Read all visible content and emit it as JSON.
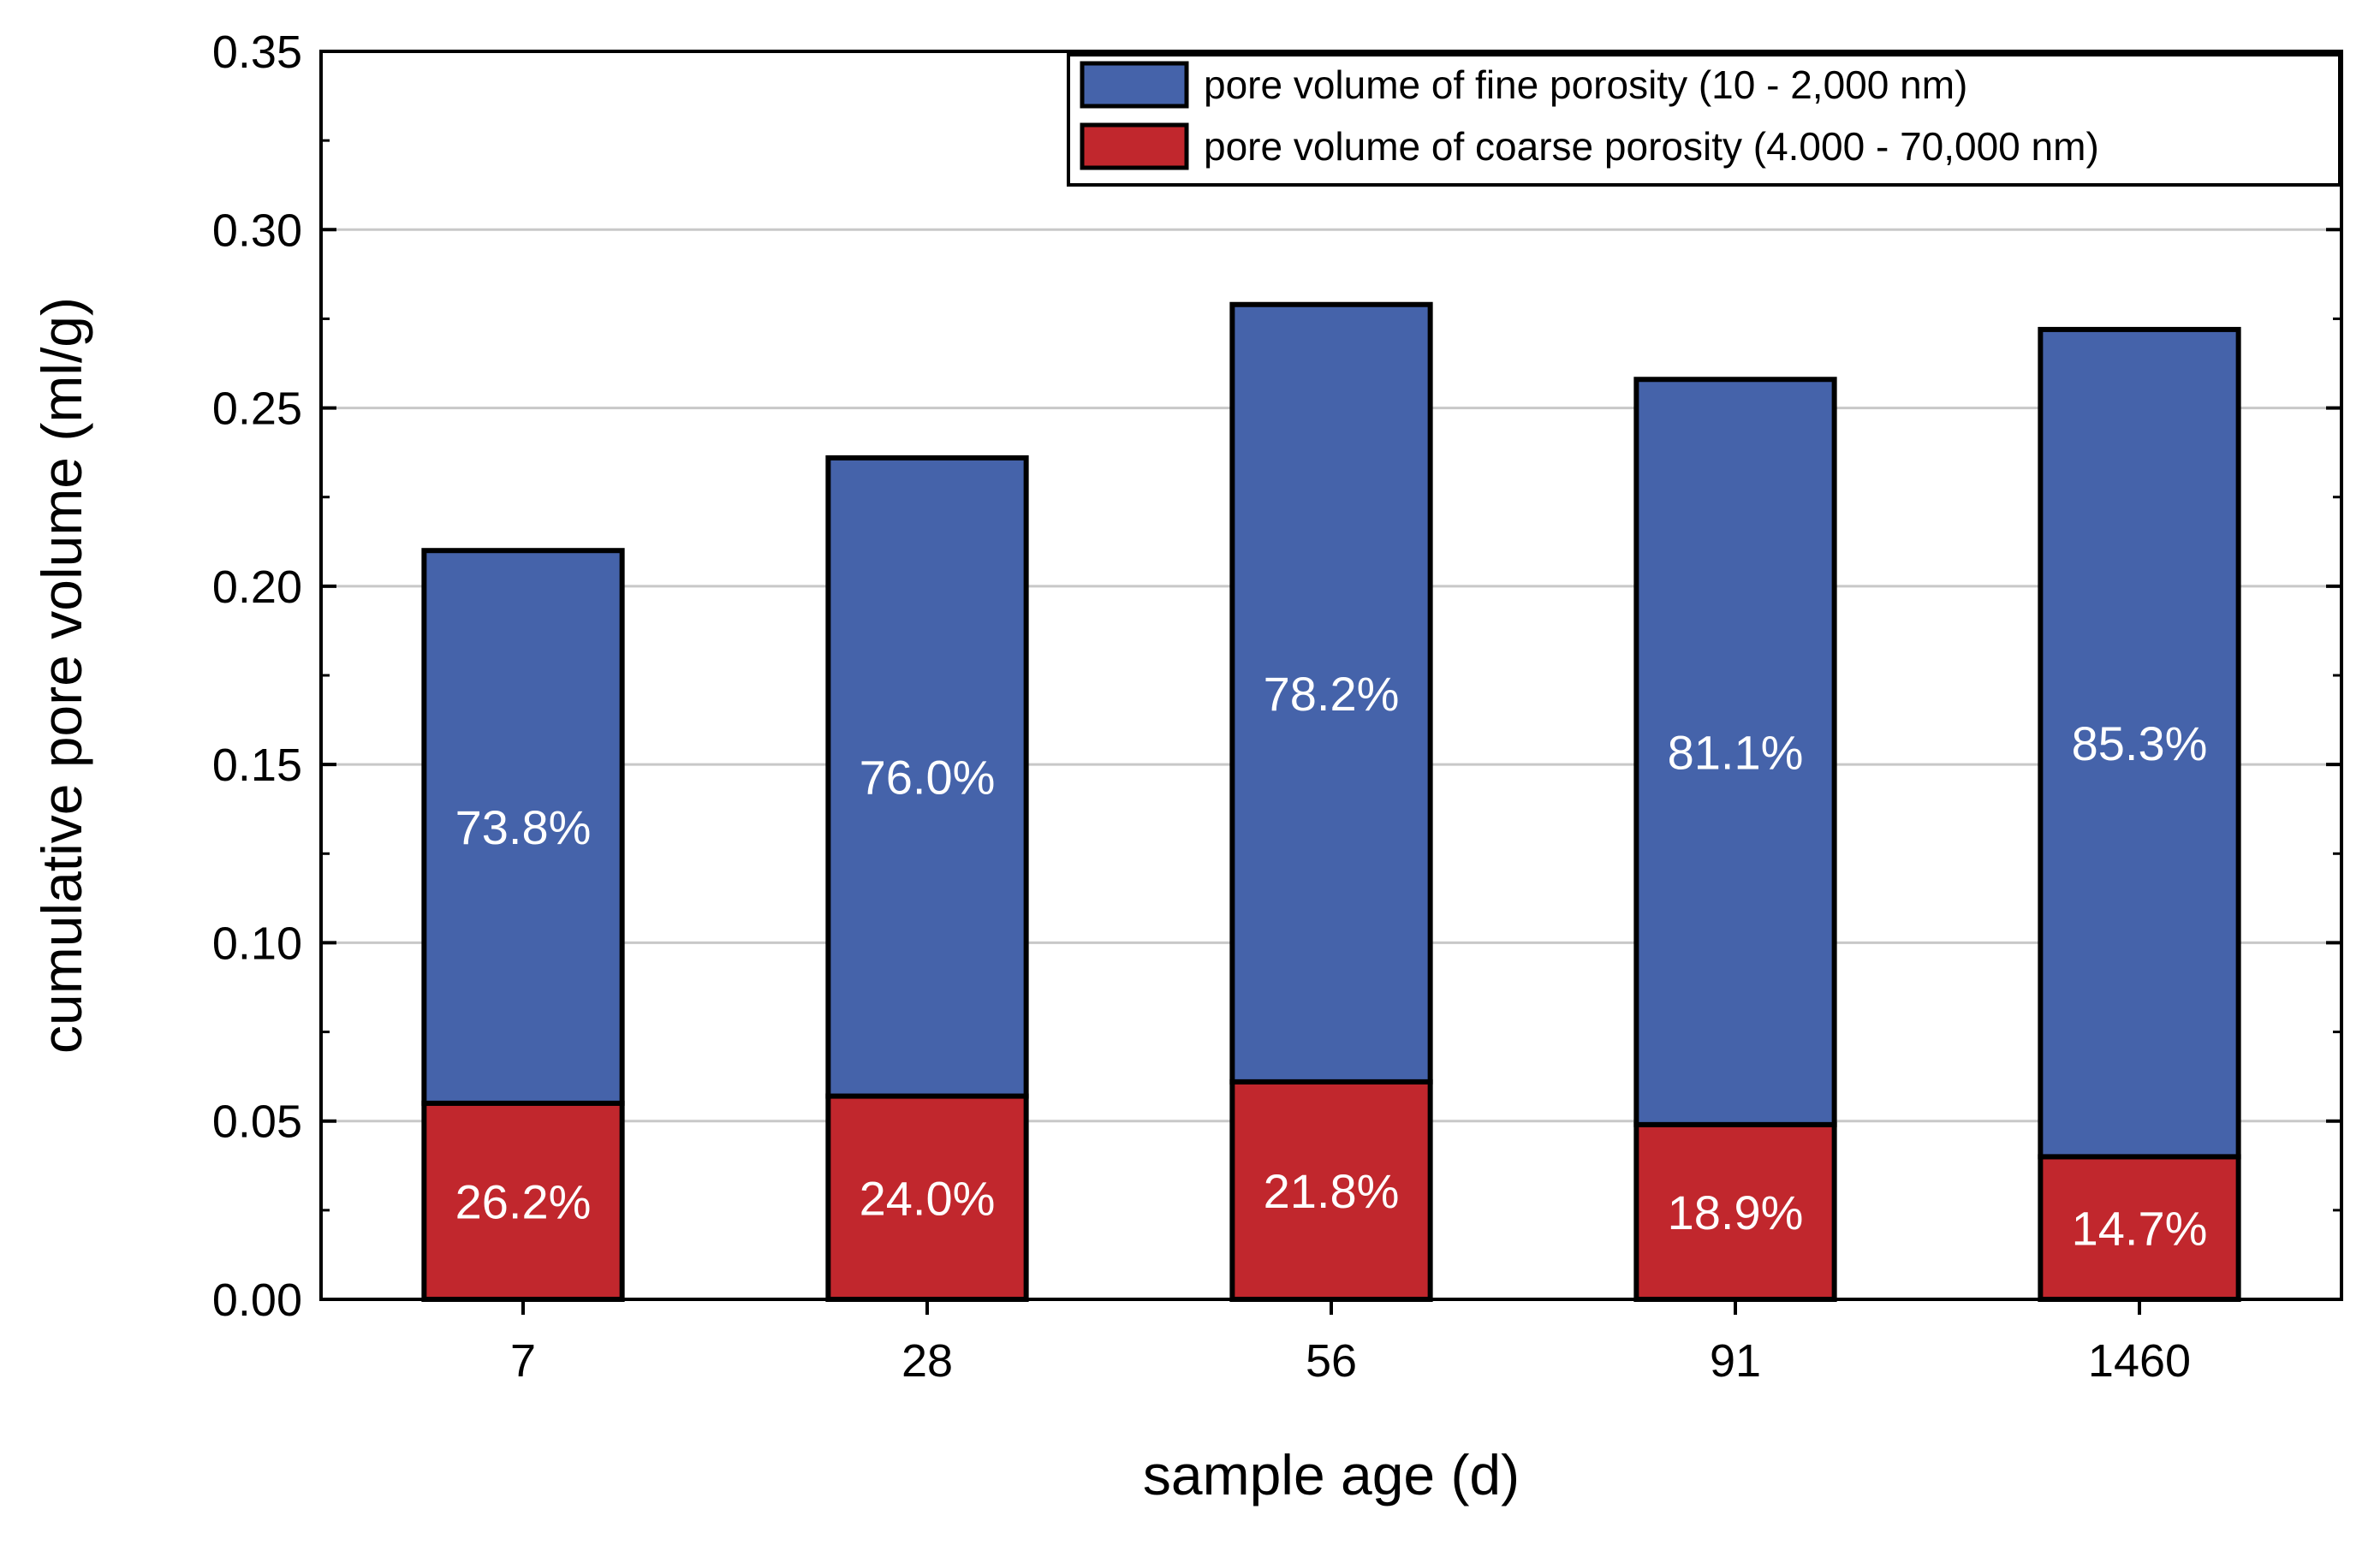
{
  "chart_data": {
    "type": "bar",
    "stacked": true,
    "categories": [
      "7",
      "28",
      "56",
      "91",
      "1460"
    ],
    "xlabel": "sample age (d)",
    "ylabel": "cumulative pore volume (ml/g)",
    "ylim": [
      0,
      0.35
    ],
    "yticks": [
      "0.00",
      "0.05",
      "0.10",
      "0.15",
      "0.20",
      "0.25",
      "0.30",
      "0.35"
    ],
    "grid": "horizontal",
    "legend_position": "top-right",
    "series": [
      {
        "name": "pore volume of coarse porosity (4.000 - 70,000 nm)",
        "color": "#c1272d",
        "values": [
          0.055,
          0.057,
          0.061,
          0.049,
          0.04
        ],
        "labels": [
          "26.2%",
          "24.0%",
          "21.8%",
          "18.9%",
          "14.7%"
        ]
      },
      {
        "name": "pore volume of fine porosity (10 - 2,000 nm)",
        "color": "#4563aa",
        "values": [
          0.155,
          0.179,
          0.218,
          0.209,
          0.232
        ],
        "labels": [
          "73.8%",
          "76.0%",
          "78.2%",
          "81.1%",
          "85.3%"
        ]
      }
    ]
  }
}
